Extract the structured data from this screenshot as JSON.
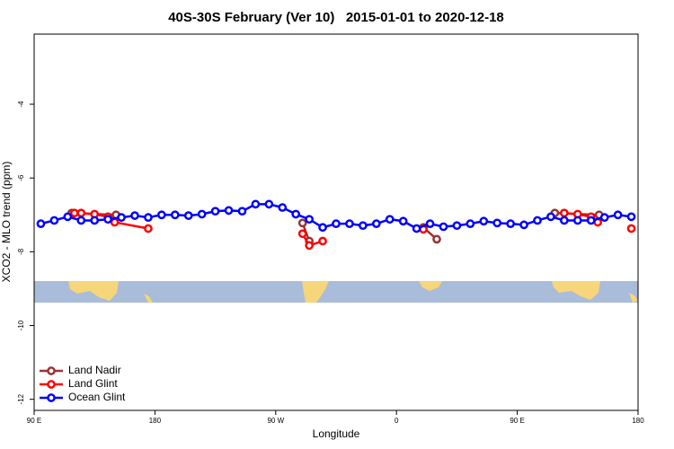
{
  "chart_data": {
    "type": "line",
    "title": "40S-30S February (Ver 10)   2015-01-01 to 2020-12-18",
    "x_label": "Longitude",
    "y_label": "XCO2 - MLO trend (ppm)",
    "xlim": [
      90,
      540
    ],
    "xticks": [
      {
        "value": 90,
        "label": "90 E"
      },
      {
        "value": 180,
        "label": "180"
      },
      {
        "value": 270,
        "label": "90 W"
      },
      {
        "value": 360,
        "label": "0"
      },
      {
        "value": 450,
        "label": "90 E"
      },
      {
        "value": 540,
        "label": "180"
      }
    ],
    "ylim": [
      -12.3,
      -2.1
    ],
    "yticks": [
      -4,
      -6,
      -8,
      -10,
      -12
    ],
    "legend": "bottomleft",
    "series": [
      {
        "name": "Land Nadir",
        "color": "#993333",
        "x": [
          118,
          151,
          220,
          290,
          295,
          340,
          380,
          390,
          440,
          478,
          511
        ],
        "values": [
          -6.95,
          -7.0,
          null,
          -7.22,
          -7.71,
          null,
          -7.34,
          -7.66,
          null,
          -6.95,
          -7.0
        ]
      },
      {
        "name": "Land Glint",
        "color": "#ff0000",
        "x": [
          120,
          125,
          135,
          145,
          150,
          175,
          230,
          290,
          295,
          305,
          340,
          380,
          440,
          485,
          495,
          505,
          510,
          520,
          535
        ],
        "values": [
          -6.95,
          -6.95,
          -6.98,
          -7.05,
          -7.2,
          -7.37,
          null,
          -7.51,
          -7.83,
          -7.71,
          null,
          -7.39,
          null,
          -6.95,
          -6.98,
          -7.05,
          -7.2,
          null,
          -7.37
        ]
      },
      {
        "name": "Ocean Glint",
        "color": "#0000ff",
        "x": [
          95,
          105,
          115,
          125,
          135,
          145,
          155,
          165,
          175,
          185,
          195,
          205,
          215,
          225,
          235,
          245,
          255,
          265,
          275,
          285,
          295,
          305,
          315,
          325,
          335,
          345,
          355,
          365,
          375,
          385,
          395,
          405,
          415,
          425,
          435,
          445,
          455,
          465,
          475,
          485,
          495,
          505,
          515,
          525,
          535
        ],
        "values": [
          -7.24,
          -7.15,
          -7.05,
          -7.15,
          -7.15,
          -7.12,
          -7.07,
          -7.02,
          -7.07,
          -7.0,
          -7.0,
          -7.02,
          -6.98,
          -6.9,
          -6.88,
          -6.9,
          -6.71,
          -6.71,
          -6.8,
          -6.98,
          -7.12,
          -7.34,
          -7.24,
          -7.24,
          -7.29,
          -7.24,
          -7.12,
          -7.17,
          -7.37,
          -7.24,
          -7.32,
          -7.29,
          -7.24,
          -7.17,
          -7.22,
          -7.24,
          -7.27,
          -7.15,
          -7.05,
          -7.15,
          -7.15,
          -7.15,
          -7.07,
          -7.0,
          -7.05
        ]
      }
    ]
  }
}
